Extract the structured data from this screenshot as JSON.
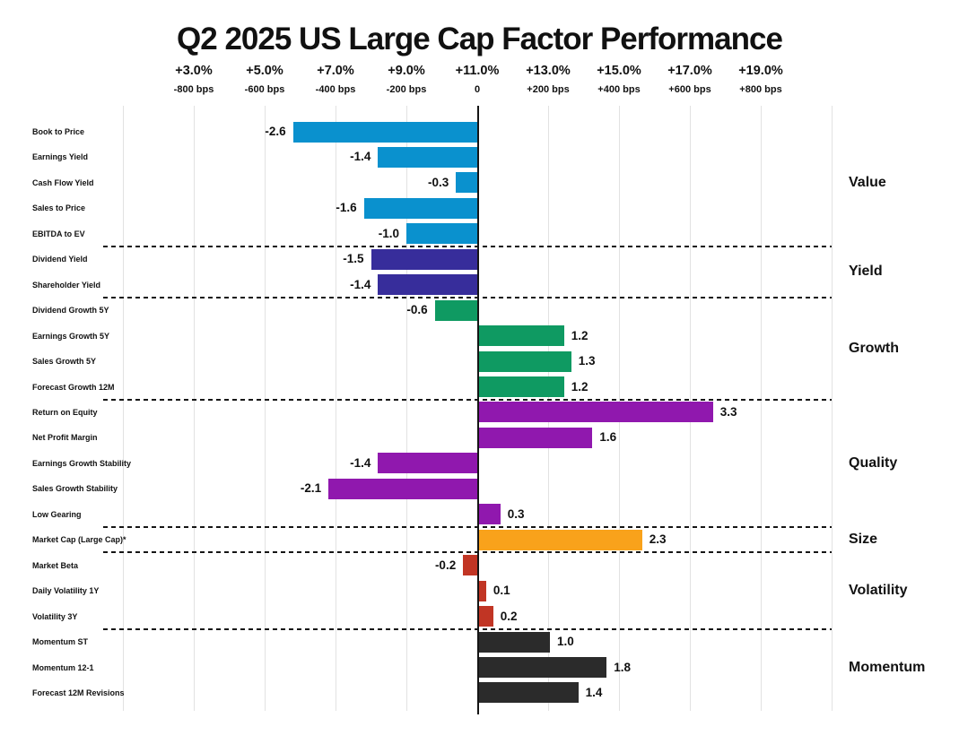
{
  "chart_data": {
    "type": "bar",
    "orientation": "horizontal",
    "title": "Q2 2025 US Large Cap Factor Performance",
    "x_axis": {
      "ticks": [
        {
          "pct": "+3.0%",
          "bps": "-800 bps"
        },
        {
          "pct": "+5.0%",
          "bps": "-600 bps"
        },
        {
          "pct": "+7.0%",
          "bps": "-400 bps"
        },
        {
          "pct": "+9.0%",
          "bps": "-200 bps"
        },
        {
          "pct": "+11.0%",
          "bps": "0"
        },
        {
          "pct": "+13.0%",
          "bps": "+200 bps"
        },
        {
          "pct": "+15.0%",
          "bps": "+400 bps"
        },
        {
          "pct": "+17.0%",
          "bps": "+600 bps"
        },
        {
          "pct": "+19.0%",
          "bps": "+800 bps"
        }
      ],
      "gridline_range_units": [
        -5,
        5
      ],
      "units_per_gridline": 1.0,
      "grid": true
    },
    "groups": [
      {
        "name": "Value",
        "color": "#0a91ce",
        "items": [
          {
            "label": "Book to Price",
            "value": -2.6
          },
          {
            "label": "Earnings Yield",
            "value": -1.4
          },
          {
            "label": "Cash Flow Yield",
            "value": -0.3
          },
          {
            "label": "Sales to Price",
            "value": -1.6
          },
          {
            "label": "EBITDA to EV",
            "value": -1.0
          }
        ]
      },
      {
        "name": "Yield",
        "color": "#372d9b",
        "items": [
          {
            "label": "Dividend Yield",
            "value": -1.5
          },
          {
            "label": "Shareholder Yield",
            "value": -1.4
          }
        ]
      },
      {
        "name": "Growth",
        "color": "#0f9a62",
        "items": [
          {
            "label": "Dividend Growth 5Y",
            "value": -0.6
          },
          {
            "label": "Earnings Growth 5Y",
            "value": 1.2
          },
          {
            "label": "Sales Growth 5Y",
            "value": 1.3
          },
          {
            "label": "Forecast Growth 12M",
            "value": 1.2
          }
        ]
      },
      {
        "name": "Quality",
        "color": "#9018ae",
        "items": [
          {
            "label": "Return on Equity",
            "value": 3.3
          },
          {
            "label": "Net Profit Margin",
            "value": 1.6
          },
          {
            "label": "Earnings Growth Stability",
            "value": -1.4
          },
          {
            "label": "Sales Growth Stability",
            "value": -2.1
          },
          {
            "label": "Low Gearing",
            "value": 0.3
          }
        ]
      },
      {
        "name": "Size",
        "color": "#f9a21b",
        "items": [
          {
            "label": "Market Cap (Large Cap)*",
            "value": 2.3
          }
        ]
      },
      {
        "name": "Volatility",
        "color": "#c13524",
        "items": [
          {
            "label": "Market Beta",
            "value": -0.2
          },
          {
            "label": "Daily Volatility 1Y",
            "value": 0.1
          },
          {
            "label": "Volatility 3Y",
            "value": 0.2
          }
        ]
      },
      {
        "name": "Momentum",
        "color": "#2b2b2b",
        "items": [
          {
            "label": "Momentum ST",
            "value": 1.0
          },
          {
            "label": "Momentum 12-1",
            "value": 1.8
          },
          {
            "label": "Forecast 12M Revisions",
            "value": 1.4
          }
        ]
      }
    ]
  }
}
